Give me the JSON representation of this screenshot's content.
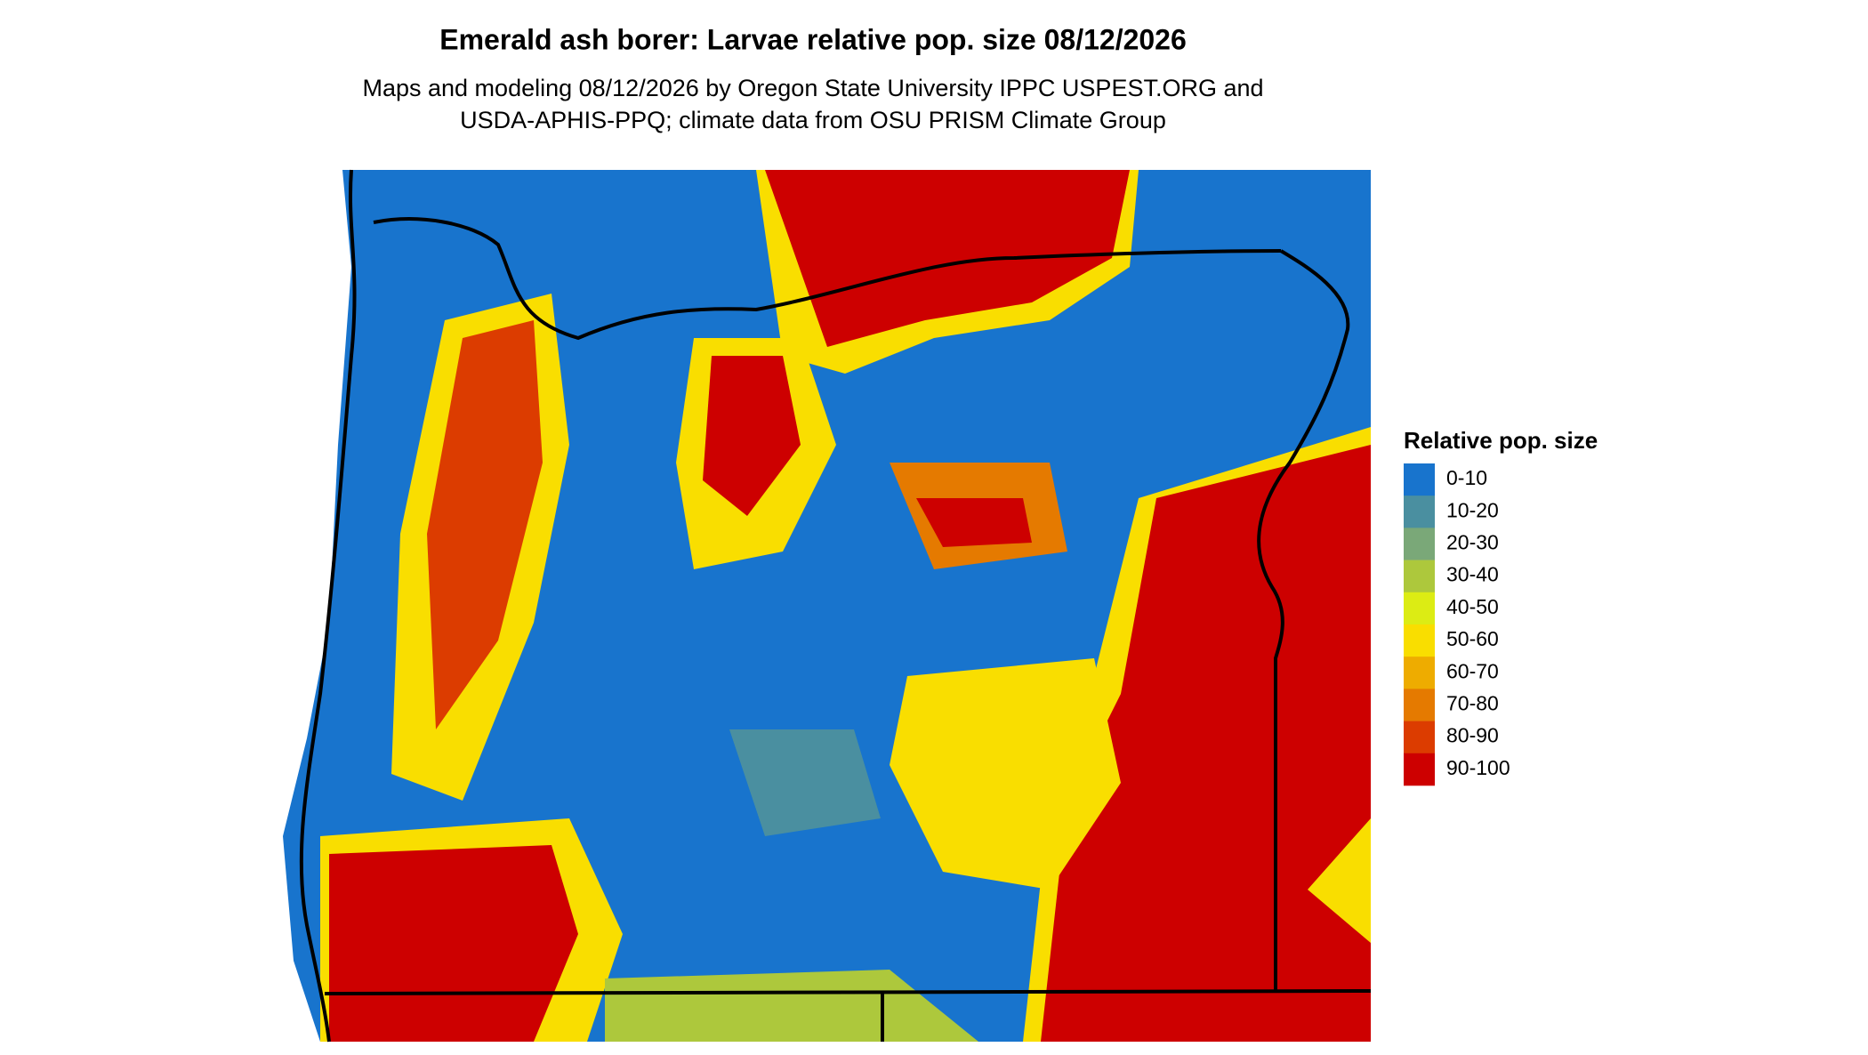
{
  "header": {
    "title": "Emerald ash borer: Larvae relative pop. size 08/12/2026",
    "subtitle": [
      "Maps and modeling 08/12/2026 by Oregon State University IPPC USPEST.ORG and",
      "USDA-APHIS-PPQ; climate data from OSU PRISM Climate Group"
    ]
  },
  "legend": {
    "title": "Relative pop. size",
    "items": [
      {
        "label": "0-10",
        "color": "#1874cd"
      },
      {
        "label": "10-20",
        "color": "#4a8fa0"
      },
      {
        "label": "20-30",
        "color": "#7aa878"
      },
      {
        "label": "30-40",
        "color": "#adc83c"
      },
      {
        "label": "40-50",
        "color": "#dcec14"
      },
      {
        "label": "50-60",
        "color": "#f9de00"
      },
      {
        "label": "60-70",
        "color": "#eeac00"
      },
      {
        "label": "70-80",
        "color": "#e57a00"
      },
      {
        "label": "80-90",
        "color": "#dc3c00"
      },
      {
        "label": "90-100",
        "color": "#cd0000"
      }
    ]
  }
}
